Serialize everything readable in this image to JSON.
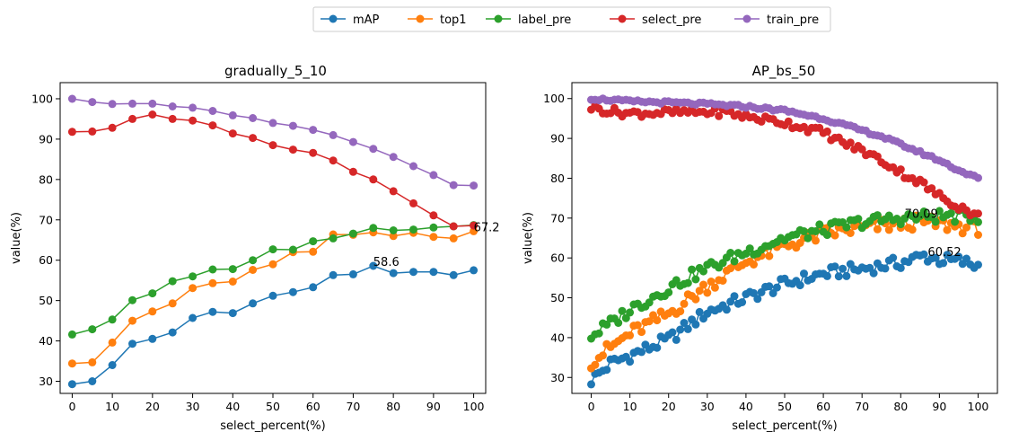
{
  "legend": {
    "entries": [
      {
        "name": "mAP",
        "color": "#1f77b4"
      },
      {
        "name": "top1",
        "color": "#ff7f0e"
      },
      {
        "name": "label_pre",
        "color": "#2ca02c"
      },
      {
        "name": "select_pre",
        "color": "#d62728"
      },
      {
        "name": "train_pre",
        "color": "#9467bd"
      }
    ],
    "placement": "top-center"
  },
  "chart_data": [
    {
      "type": "line",
      "title": "gradually_5_10",
      "xlabel": "select_percent(%)",
      "ylabel": "value(%)",
      "xlim": [
        -3,
        103
      ],
      "ylim": [
        27,
        104
      ],
      "xticks": [
        0,
        10,
        20,
        30,
        40,
        50,
        60,
        70,
        80,
        90,
        100
      ],
      "yticks": [
        30,
        40,
        50,
        60,
        70,
        80,
        90,
        100
      ],
      "grid": false,
      "x": [
        0,
        5,
        10,
        15,
        20,
        25,
        30,
        35,
        40,
        45,
        50,
        55,
        60,
        65,
        70,
        75,
        80,
        85,
        90,
        95,
        100
      ],
      "series": [
        {
          "name": "mAP",
          "color": "#1f77b4",
          "values": [
            29.3,
            30.0,
            34.0,
            39.3,
            40.5,
            42.1,
            45.7,
            47.2,
            46.9,
            49.3,
            51.2,
            52.1,
            53.3,
            56.3,
            56.5,
            58.6,
            56.8,
            57.1,
            57.1,
            56.3,
            57.5
          ]
        },
        {
          "name": "top1",
          "color": "#ff7f0e",
          "values": [
            34.4,
            34.7,
            39.6,
            45.0,
            47.3,
            49.3,
            53.1,
            54.3,
            54.7,
            57.6,
            59.0,
            62.0,
            62.1,
            66.4,
            66.3,
            66.9,
            66.0,
            66.8,
            65.8,
            65.4,
            67.2
          ]
        },
        {
          "name": "label_pre",
          "color": "#2ca02c",
          "values": [
            41.6,
            42.9,
            45.3,
            50.1,
            51.8,
            54.8,
            56.0,
            57.7,
            57.8,
            60.0,
            62.7,
            62.6,
            64.7,
            65.4,
            66.6,
            68.0,
            67.4,
            67.6,
            68.1,
            68.4,
            68.7
          ]
        },
        {
          "name": "select_pre",
          "color": "#d62728",
          "values": [
            91.8,
            91.9,
            92.8,
            95.0,
            96.1,
            95.0,
            94.6,
            93.4,
            91.4,
            90.3,
            88.5,
            87.4,
            86.6,
            84.7,
            81.9,
            80.0,
            77.1,
            74.1,
            71.1,
            68.4,
            68.6
          ]
        },
        {
          "name": "train_pre",
          "color": "#9467bd",
          "values": [
            100.0,
            99.2,
            98.7,
            98.8,
            98.8,
            98.1,
            97.8,
            97.0,
            95.9,
            95.2,
            94.0,
            93.3,
            92.3,
            91.0,
            89.3,
            87.6,
            85.6,
            83.3,
            81.1,
            78.6,
            78.5
          ]
        }
      ],
      "annotations": [
        {
          "x": 75,
          "y": 58.6,
          "text": "58.6"
        },
        {
          "x": 100,
          "y": 67.2,
          "text": "67.2"
        }
      ]
    },
    {
      "type": "line",
      "title": "AP_bs_50",
      "xlabel": "select_percent(%)",
      "ylabel": "value(%)",
      "xlim": [
        -5,
        105
      ],
      "ylim": [
        26,
        104
      ],
      "xticks": [
        0,
        10,
        20,
        30,
        40,
        50,
        60,
        70,
        80,
        90,
        100
      ],
      "yticks": [
        30,
        40,
        50,
        60,
        70,
        80,
        90,
        100
      ],
      "grid": false,
      "x_start": 0,
      "x_end": 100,
      "x_count": 101,
      "x_step": 1,
      "series": [
        {
          "name": "mAP",
          "color": "#1f77b4",
          "knots": [
            [
              0,
              29.3
            ],
            [
              5,
              33.5
            ],
            [
              10,
              35.5
            ],
            [
              20,
              39.5
            ],
            [
              30,
              46.5
            ],
            [
              40,
              50.0
            ],
            [
              50,
              53.5
            ],
            [
              60,
              56.0
            ],
            [
              70,
              57.3
            ],
            [
              80,
              58.8
            ],
            [
              86,
              60.5
            ],
            [
              90,
              59.5
            ],
            [
              95,
              59.2
            ],
            [
              100,
              58.0
            ]
          ]
        },
        {
          "name": "top1",
          "color": "#ff7f0e",
          "knots": [
            [
              0,
              34.0
            ],
            [
              5,
              37.5
            ],
            [
              10,
              41.0
            ],
            [
              20,
              46.0
            ],
            [
              30,
              53.0
            ],
            [
              40,
              59.0
            ],
            [
              50,
              63.0
            ],
            [
              60,
              66.0
            ],
            [
              70,
              67.5
            ],
            [
              80,
              68.5
            ],
            [
              85,
              69.0
            ],
            [
              90,
              68.5
            ],
            [
              100,
              67.5
            ]
          ]
        },
        {
          "name": "label_pre",
          "color": "#2ca02c",
          "knots": [
            [
              0,
              40.5
            ],
            [
              5,
              43.5
            ],
            [
              10,
              47.0
            ],
            [
              20,
              52.5
            ],
            [
              30,
              57.5
            ],
            [
              40,
              61.5
            ],
            [
              50,
              65.0
            ],
            [
              60,
              67.0
            ],
            [
              70,
              69.0
            ],
            [
              80,
              70.0
            ],
            [
              90,
              70.5
            ],
            [
              100,
              70.5
            ]
          ]
        },
        {
          "name": "select_pre",
          "color": "#d62728",
          "knots": [
            [
              0,
              97.8
            ],
            [
              5,
              96.8
            ],
            [
              10,
              96.3
            ],
            [
              20,
              96.5
            ],
            [
              30,
              96.6
            ],
            [
              35,
              96.6
            ],
            [
              40,
              95.5
            ],
            [
              50,
              94.0
            ],
            [
              60,
              91.5
            ],
            [
              65,
              89.0
            ],
            [
              70,
              87.0
            ],
            [
              75,
              84.5
            ],
            [
              80,
              81.5
            ],
            [
              85,
              79.0
            ],
            [
              90,
              75.5
            ],
            [
              95,
              73.0
            ],
            [
              100,
              70.5
            ]
          ]
        },
        {
          "name": "train_pre",
          "color": "#9467bd",
          "knots": [
            [
              0,
              100.0
            ],
            [
              10,
              99.3
            ],
            [
              20,
              99.0
            ],
            [
              30,
              98.6
            ],
            [
              40,
              98.0
            ],
            [
              50,
              97.0
            ],
            [
              55,
              96.0
            ],
            [
              60,
              95.0
            ],
            [
              65,
              93.5
            ],
            [
              70,
              92.0
            ],
            [
              75,
              90.5
            ],
            [
              80,
              88.5
            ],
            [
              85,
              86.5
            ],
            [
              90,
              84.5
            ],
            [
              95,
              82.0
            ],
            [
              100,
              80.0
            ]
          ]
        }
      ],
      "annotations": [
        {
          "x": 81,
          "y": 70.09,
          "text": "70.09"
        },
        {
          "x": 87,
          "y": 60.52,
          "text": "60.52"
        }
      ]
    }
  ]
}
